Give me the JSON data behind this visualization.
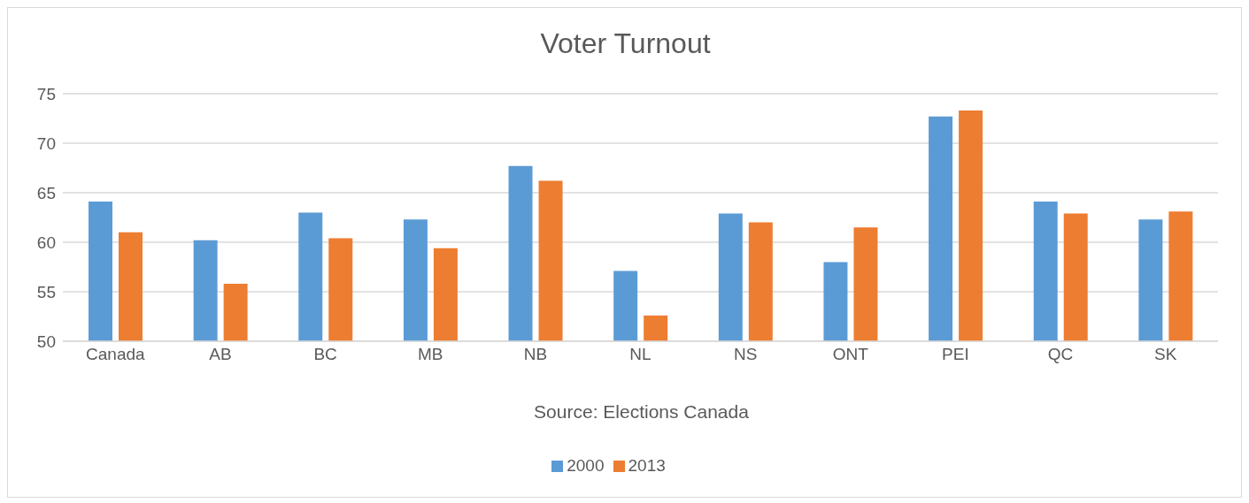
{
  "chart_data": {
    "type": "bar",
    "title": "Voter Turnout",
    "annotations": [
      "Source: Elections Canada"
    ],
    "categories": [
      "Canada",
      "AB",
      "BC",
      "MB",
      "NB",
      "NL",
      "NS",
      "ONT",
      "PEI",
      "QC",
      "SK"
    ],
    "series": [
      {
        "name": "2000",
        "color": "#5b9bd5",
        "values": [
          64.1,
          60.2,
          63.0,
          62.3,
          67.7,
          57.1,
          62.9,
          58.0,
          72.7,
          64.1,
          62.3
        ]
      },
      {
        "name": "2013",
        "color": "#ed7d31",
        "values": [
          61.0,
          55.8,
          60.4,
          59.4,
          66.2,
          52.6,
          62.0,
          61.5,
          73.3,
          62.9,
          63.1
        ]
      }
    ],
    "ylim": [
      50,
      75
    ],
    "yticks": [
      50,
      55,
      60,
      65,
      70,
      75
    ],
    "grid": "y",
    "legend": "bottom"
  }
}
